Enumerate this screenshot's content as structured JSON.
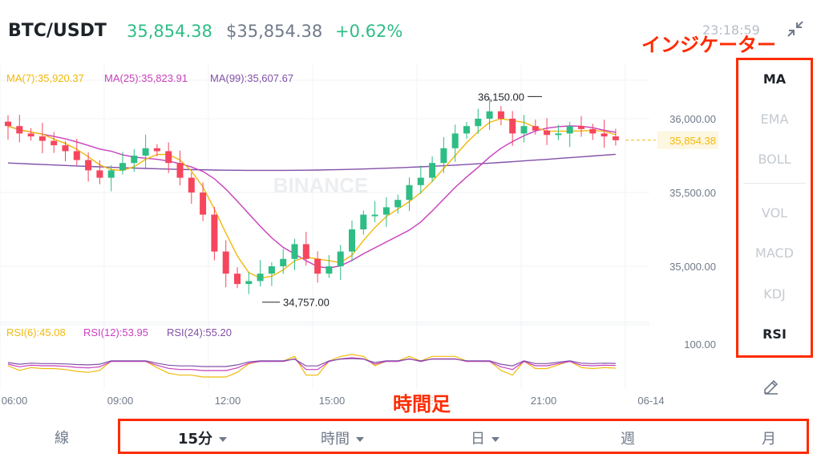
{
  "header": {
    "pair": "BTC/USDT",
    "last_price": "35,854.38",
    "usd_price": "$35,854.38",
    "change": "+0.62%",
    "clock": "23:18:59"
  },
  "annotations": {
    "indicator": "インジケーター",
    "timeframe": "時間足"
  },
  "chart": {
    "ma_legend": [
      {
        "label": "MA(7):35,920.37",
        "color": "#f0b90b"
      },
      {
        "label": "MA(25):35,823.91",
        "color": "#c83fbc"
      },
      {
        "label": "MA(99):35,607.67",
        "color": "#8250a8"
      }
    ],
    "rsi_legend": [
      {
        "label": "RSI(6):45.08",
        "color": "#f0b90b"
      },
      {
        "label": "RSI(12):53.95",
        "color": "#c83fbc"
      },
      {
        "label": "RSI(24):55.20",
        "color": "#8250a8"
      }
    ],
    "price_labels": [
      "36,000.00",
      "35,500.00",
      "35,000.00"
    ],
    "current_price_tag": "35,854.38",
    "rsi_axis_label": "100.00",
    "high_label": "36,150.00",
    "low_label": "34,757.00",
    "time_labels": [
      "06:00",
      "09:00",
      "12:00",
      "15:00",
      "18:00",
      "21:00",
      "06-14"
    ],
    "watermark": "BINANCE",
    "up_color": "#2ebd85",
    "down_color": "#f6465d"
  },
  "chart_data": {
    "type": "candlestick",
    "y_axis_ticks": [
      35000,
      35500,
      36000
    ],
    "x_axis_ticks": [
      "06:00",
      "09:00",
      "12:00",
      "15:00",
      "18:00",
      "21:00",
      "06-14"
    ],
    "last_price": 35854.38,
    "high": 36150.0,
    "low": 34757.0,
    "candles_close_approx": [
      35950,
      35900,
      35880,
      35850,
      35820,
      35780,
      35720,
      35650,
      35600,
      35650,
      35700,
      35750,
      35800,
      35780,
      35700,
      35600,
      35500,
      35350,
      35100,
      34950,
      34880,
      34900,
      34950,
      35000,
      35050,
      35150,
      35050,
      34950,
      35000,
      35100,
      35250,
      35350,
      35350,
      35400,
      35450,
      35550,
      35600,
      35700,
      35800,
      35900,
      35950,
      36000,
      36050,
      36000,
      35900,
      35950,
      35920,
      35890,
      35900,
      35950,
      35930,
      35900,
      35880,
      35854.38
    ],
    "ma_series": [
      {
        "name": "MA(7)",
        "last": 35920.37
      },
      {
        "name": "MA(25)",
        "last": 35823.91
      },
      {
        "name": "MA(99)",
        "last": 35607.67
      }
    ],
    "rsi_series": [
      {
        "name": "RSI(6)",
        "last": 45.08
      },
      {
        "name": "RSI(12)",
        "last": 53.95
      },
      {
        "name": "RSI(24)",
        "last": 55.2
      }
    ],
    "rsi_axis_max": 100.0
  },
  "indicators": {
    "main": [
      {
        "label": "MA",
        "active": true
      },
      {
        "label": "EMA",
        "active": false
      },
      {
        "label": "BOLL",
        "active": false
      }
    ],
    "sub": [
      {
        "label": "VOL",
        "active": false
      },
      {
        "label": "MACD",
        "active": false
      },
      {
        "label": "KDJ",
        "active": false
      },
      {
        "label": "RSI",
        "active": true
      }
    ]
  },
  "timeframe": {
    "line_label": "線",
    "items": [
      {
        "label": "15分",
        "active": true,
        "dropdown": true
      },
      {
        "label": "時間",
        "active": false,
        "dropdown": true
      },
      {
        "label": "日",
        "active": false,
        "dropdown": true
      },
      {
        "label": "週",
        "active": false,
        "dropdown": false
      },
      {
        "label": "月",
        "active": false,
        "dropdown": false
      }
    ]
  },
  "icons": {
    "collapse": "collapse-arrows-icon",
    "edit": "pencil-icon"
  }
}
